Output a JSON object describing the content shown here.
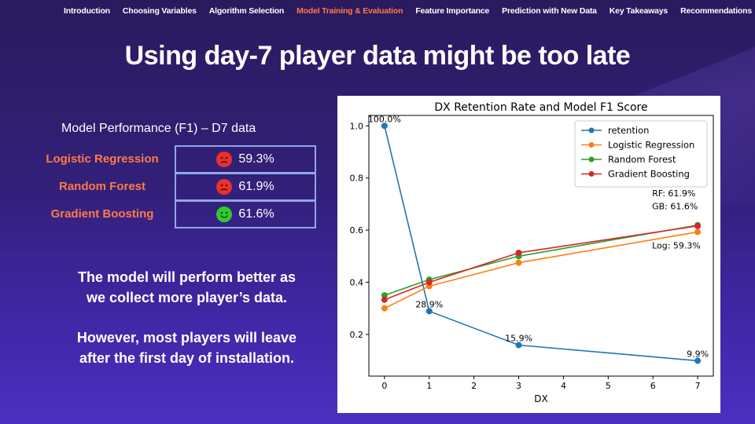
{
  "nav": {
    "items": [
      {
        "label": "Introduction",
        "active": false
      },
      {
        "label": "Choosing Variables",
        "active": false
      },
      {
        "label": "Algorithm Selection",
        "active": false
      },
      {
        "label": "Model Training & Evaluation",
        "active": true
      },
      {
        "label": "Feature Importance",
        "active": false
      },
      {
        "label": "Prediction with New Data",
        "active": false
      },
      {
        "label": "Key Takeaways",
        "active": false
      },
      {
        "label": "Recommendations",
        "active": false
      }
    ]
  },
  "title": "Using day-7 player data might be too late",
  "performance": {
    "heading": "Model Performance  (F1) – D7 data",
    "rows": [
      {
        "model": "Logistic Regression",
        "value": "59.3%",
        "face": "sad"
      },
      {
        "model": "Random Forest",
        "value": "61.9%",
        "face": "sad"
      },
      {
        "model": "Gradient Boosting",
        "value": "61.6%",
        "face": "happy"
      }
    ]
  },
  "message": {
    "line1": "The model will perform better as",
    "line2": "we collect more player’s data.",
    "line3": "However, most players will leave",
    "line4": "after the first day of installation."
  },
  "colors": {
    "accent": "#ff7a45",
    "retention": "#1f77b4",
    "logistic": "#ff7f0e",
    "forest": "#2ca02c",
    "boosting": "#d62728"
  },
  "chart_data": {
    "type": "line",
    "title": "DX Retention Rate and Model F1 Score",
    "xlabel": "DX",
    "ylabel": "",
    "xlim": [
      -0.35,
      7.35
    ],
    "ylim": [
      0.04,
      1.04
    ],
    "xticks": [
      0,
      1,
      2,
      3,
      4,
      5,
      6,
      7
    ],
    "yticks": [
      0.2,
      0.4,
      0.6,
      0.8,
      1.0
    ],
    "legend_position": "top-right",
    "grid": false,
    "series": [
      {
        "name": "retention",
        "color": "#1f77b4",
        "x": [
          0,
          1,
          3,
          7
        ],
        "y": [
          1.0,
          0.289,
          0.159,
          0.099
        ]
      },
      {
        "name": "Logistic Regression",
        "color": "#ff7f0e",
        "x": [
          0,
          1,
          3,
          7
        ],
        "y": [
          0.3,
          0.385,
          0.475,
          0.593
        ]
      },
      {
        "name": "Random Forest",
        "color": "#2ca02c",
        "x": [
          0,
          1,
          3,
          7
        ],
        "y": [
          0.35,
          0.41,
          0.5,
          0.619
        ]
      },
      {
        "name": "Gradient Boosting",
        "color": "#d62728",
        "x": [
          0,
          1,
          3,
          7
        ],
        "y": [
          0.333,
          0.4,
          0.513,
          0.616
        ]
      }
    ],
    "point_labels": [
      {
        "text": "100.0%",
        "x": 0,
        "y": 1.0
      },
      {
        "text": "28.9%",
        "x": 1,
        "y": 0.289
      },
      {
        "text": "15.9%",
        "x": 3,
        "y": 0.159
      },
      {
        "text": "9.9%",
        "x": 7,
        "y": 0.099
      }
    ],
    "annotations": [
      {
        "text": "RF: 61.9%"
      },
      {
        "text": "GB: 61.6%"
      },
      {
        "text": "Log: 59.3%"
      }
    ]
  }
}
